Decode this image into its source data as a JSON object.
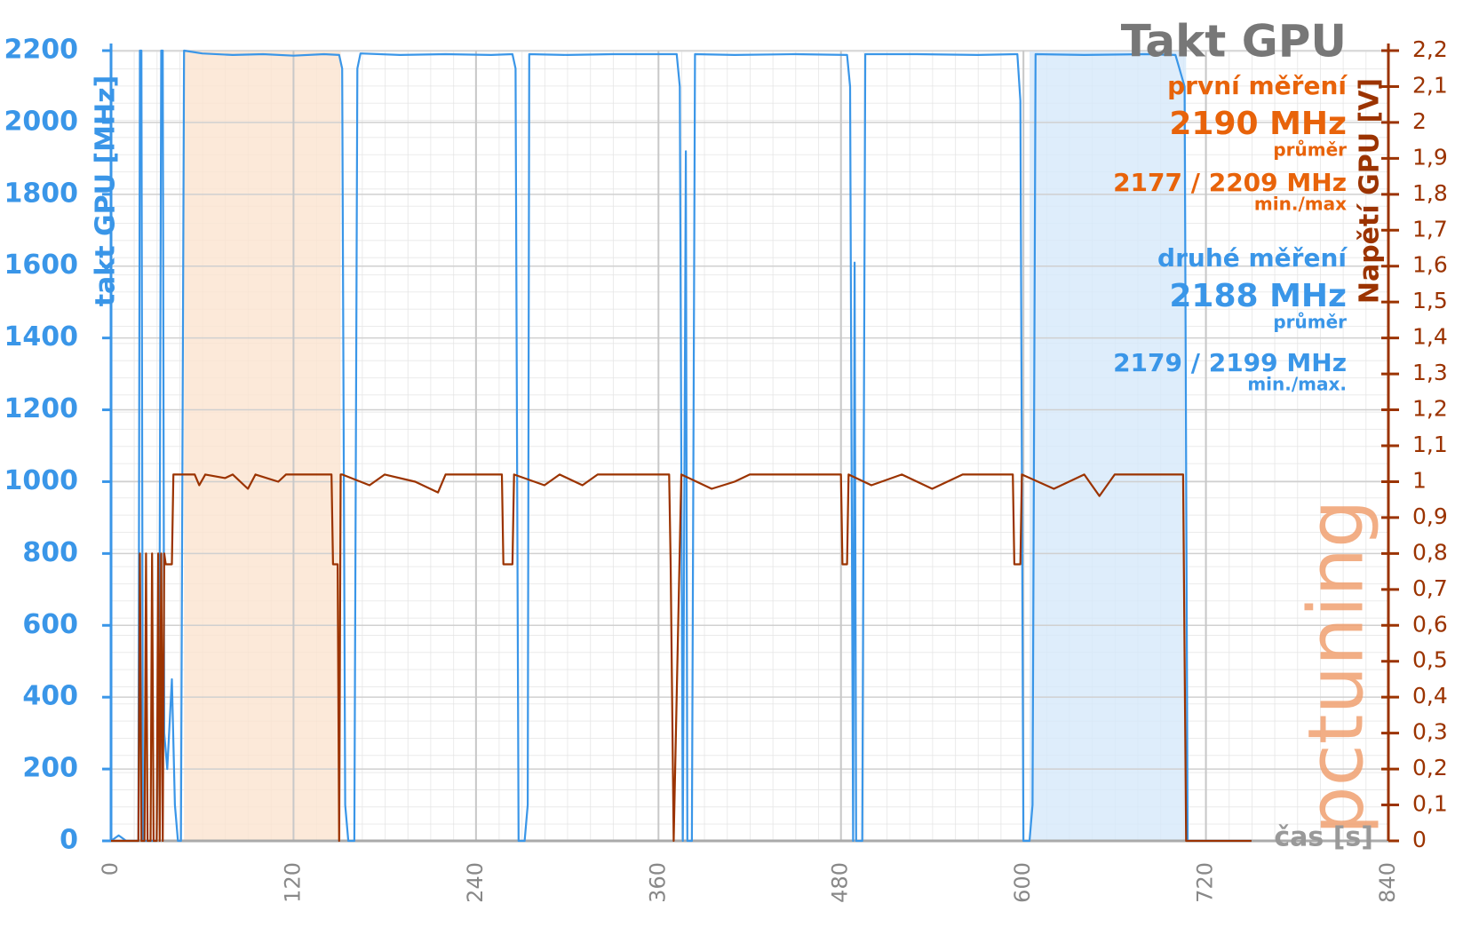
{
  "chart_data": {
    "type": "line",
    "title": "Takt GPU",
    "y_label": "takt GPU [MHz]",
    "y2_label": "Napětí GPU [V]",
    "x_label": "čas [s]",
    "logo": "pctuning",
    "annotations": [
      {
        "text": "první měření",
        "color": "#e8630a"
      },
      {
        "text": "2190 MHz",
        "color": "#e8630a"
      },
      {
        "text": "průměr",
        "color": "#e8630a"
      },
      {
        "text": "2177 / 2209 MHz",
        "color": "#e8630a"
      },
      {
        "text": "min./max",
        "color": "#e8630a"
      },
      {
        "text": "druhé měření",
        "color": "#3a96e8"
      },
      {
        "text": "2188 MHz",
        "color": "#3a96e8"
      },
      {
        "text": "průměr",
        "color": "#3a96e8"
      },
      {
        "text": "2179 / 2199 MHz",
        "color": "#3a96e8"
      },
      {
        "text": "min./max.",
        "color": "#3a96e8"
      }
    ],
    "shaded_regions": [
      {
        "start": 48,
        "end": 151,
        "color": "#fbe3cf"
      },
      {
        "start": 604,
        "end": 707,
        "color": "#d6e8fa"
      }
    ],
    "xlim": [
      0,
      840
    ],
    "xticks": [
      0,
      120,
      240,
      360,
      480,
      600,
      720,
      840
    ],
    "ylim": [
      0,
      2200
    ],
    "yticks": [
      0,
      200,
      400,
      600,
      800,
      1000,
      1200,
      1400,
      1600,
      1800,
      2000,
      2200
    ],
    "y2lim": [
      0,
      2.2
    ],
    "y2ticks": [
      0,
      {
        "value": 0.1,
        "label": "0,1"
      },
      {
        "value": 0.2,
        "label": "0,2"
      },
      {
        "value": 0.3,
        "label": "0,3"
      },
      {
        "value": 0.4,
        "label": "0,4"
      },
      {
        "value": 0.5,
        "label": "0,5"
      },
      {
        "value": 0.6,
        "label": "0,6"
      },
      {
        "value": 0.7,
        "label": "0,7"
      },
      {
        "value": 0.8,
        "label": "0,8"
      },
      {
        "value": 0.9,
        "label": "0,9"
      },
      1,
      {
        "value": 1.1,
        "label": "1,1"
      },
      {
        "value": 1.2,
        "label": "1,2"
      },
      {
        "value": 1.3,
        "label": "1,3"
      },
      {
        "value": 1.4,
        "label": "1,4"
      },
      {
        "value": 1.5,
        "label": "1,5"
      },
      {
        "value": 1.6,
        "label": "1,6"
      },
      {
        "value": 1.7,
        "label": "1,7"
      },
      {
        "value": 1.8,
        "label": "1,8"
      },
      {
        "value": 1.9,
        "label": "1,9"
      },
      2,
      {
        "value": 2.1,
        "label": "2,1"
      },
      {
        "value": 2.2,
        "label": "2,2"
      }
    ],
    "y_color": "#3a96e8",
    "y2_color": "#9b3300",
    "grid": true,
    "series": [
      {
        "color": "#3a96e8",
        "x": [
          0,
          5,
          10,
          18,
          19,
          20,
          21,
          30,
          32,
          33,
          34,
          35,
          37,
          40,
          42,
          44,
          46,
          48,
          60,
          80,
          100,
          120,
          140,
          150,
          152,
          154,
          156,
          160,
          162,
          164,
          190,
          220,
          250,
          264,
          266,
          268,
          272,
          274,
          275,
          300,
          330,
          360,
          372,
          374,
          376,
          378,
          379,
          382,
          384,
          410,
          450,
          484,
          486,
          488,
          489,
          490,
          494,
          496,
          530,
          570,
          596,
          598,
          600,
          604,
          606,
          608,
          640,
          680,
          700,
          706,
          708,
          750
        ],
        "values": [
          0,
          15,
          0,
          0,
          2200,
          2200,
          0,
          0,
          800,
          2200,
          2200,
          300,
          200,
          450,
          100,
          0,
          0,
          2200,
          2192,
          2188,
          2190,
          2186,
          2190,
          2188,
          2150,
          100,
          0,
          0,
          2150,
          2192,
          2188,
          2190,
          2188,
          2190,
          2150,
          0,
          0,
          100,
          2190,
          2188,
          2190,
          2190,
          2190,
          2100,
          0,
          1920,
          0,
          0,
          2190,
          2188,
          2190,
          2188,
          2100,
          0,
          1610,
          0,
          0,
          2190,
          2190,
          2188,
          2190,
          2060,
          0,
          0,
          100,
          2190,
          2188,
          2190,
          2188,
          2100,
          0,
          0
        ]
      },
      {
        "color": "#9b3300",
        "axis": "y2",
        "x": [
          0,
          18,
          19,
          20,
          22,
          23,
          24,
          26,
          27,
          28,
          30,
          31,
          32,
          33,
          34,
          35,
          36,
          40,
          41,
          55,
          58,
          62,
          75,
          80,
          90,
          95,
          110,
          115,
          145,
          146,
          149,
          150,
          151,
          152,
          170,
          180,
          200,
          215,
          220,
          257,
          258,
          264,
          265,
          285,
          295,
          310,
          320,
          367,
          368,
          370,
          375,
          395,
          410,
          420,
          480,
          481,
          484,
          485,
          500,
          520,
          540,
          560,
          593,
          594,
          598,
          599,
          620,
          640,
          650,
          660,
          705,
          707,
          750
        ],
        "values": [
          0,
          0,
          0.8,
          0,
          0,
          0.8,
          0,
          0,
          0.8,
          0,
          0,
          0.8,
          0,
          0.8,
          0,
          0.8,
          0.77,
          0.77,
          1.02,
          1.02,
          0.99,
          1.02,
          1.01,
          1.02,
          0.98,
          1.02,
          1.0,
          1.02,
          1.02,
          0.77,
          0.77,
          0,
          1.02,
          1.02,
          0.99,
          1.02,
          1.0,
          0.97,
          1.02,
          1.02,
          0.77,
          0.77,
          1.02,
          0.99,
          1.02,
          0.99,
          1.02,
          1.02,
          0.77,
          0,
          1.02,
          0.98,
          1.0,
          1.02,
          1.02,
          0.77,
          0.77,
          1.02,
          0.99,
          1.02,
          0.98,
          1.02,
          1.02,
          0.77,
          0.77,
          1.02,
          0.98,
          1.02,
          0.96,
          1.02,
          1.02,
          0,
          0
        ]
      }
    ]
  }
}
